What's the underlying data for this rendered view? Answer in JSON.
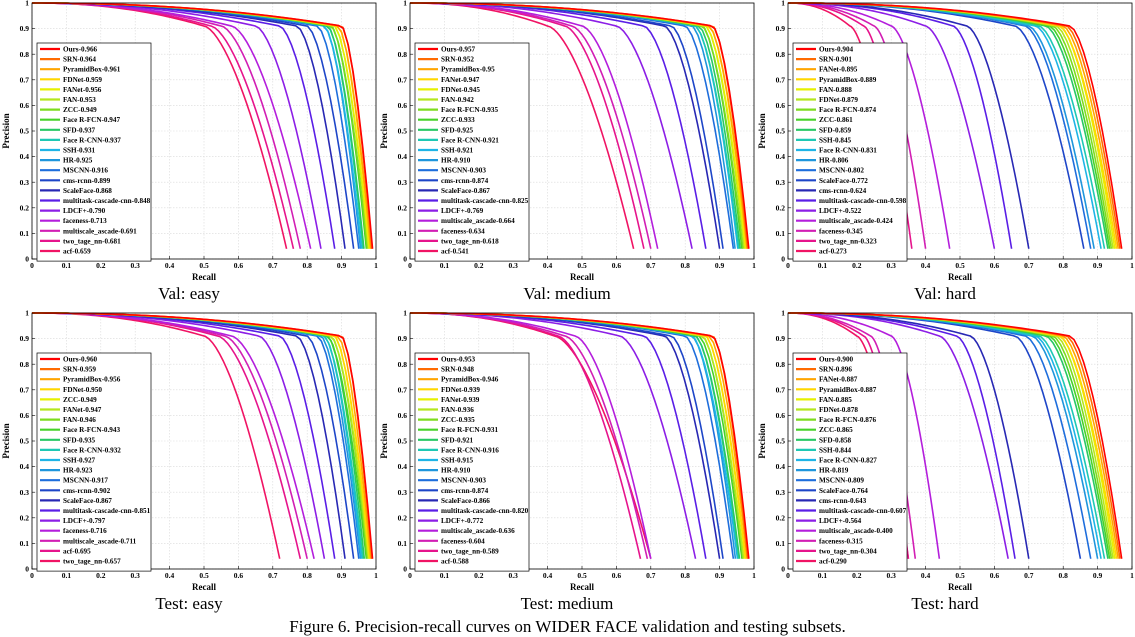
{
  "figure_caption": "Figure 6. Precision-recall curves on WIDER FACE validation and testing subsets.",
  "colors": [
    "#ff0000",
    "#ff6a00",
    "#ffa500",
    "#ffd700",
    "#e6f000",
    "#b4e61e",
    "#7ddc1e",
    "#46d228",
    "#28c864",
    "#1ec8b4",
    "#1eb4e6",
    "#1e96dc",
    "#1e6edc",
    "#1e46c8",
    "#2828b4",
    "#5a1ee6",
    "#8c1ee6",
    "#b41edc",
    "#d21eb4",
    "#e6148c",
    "#f01464"
  ],
  "chart_data": [
    {
      "type": "line",
      "caption": "Val: easy",
      "xlabel": "Recall",
      "ylabel": "Precision",
      "xlim": [
        0,
        1
      ],
      "ylim": [
        0,
        1
      ],
      "xticks": [
        "0",
        "0.1",
        "0.2",
        "0.3",
        "0.4",
        "0.5",
        "0.6",
        "0.7",
        "0.8",
        "0.9",
        "1"
      ],
      "yticks": [
        "0",
        "0.1",
        "0.2",
        "0.3",
        "0.4",
        "0.5",
        "0.6",
        "0.7",
        "0.8",
        "0.9",
        "1"
      ],
      "grid": true,
      "legend": "left",
      "series": [
        {
          "name": "Ours-0.966",
          "end": 0.99,
          "knee": 0.9
        },
        {
          "name": "SRN-0.964",
          "end": 0.988,
          "knee": 0.9
        },
        {
          "name": "PyramidBox-0.961",
          "end": 0.985,
          "knee": 0.89
        },
        {
          "name": "FDNet-0.959",
          "end": 0.983,
          "knee": 0.89
        },
        {
          "name": "FANet-0.956",
          "end": 0.98,
          "knee": 0.88
        },
        {
          "name": "FAN-0.953",
          "end": 0.978,
          "knee": 0.88
        },
        {
          "name": "ZCC-0.949",
          "end": 0.975,
          "knee": 0.87
        },
        {
          "name": "Face R-FCN-0.947",
          "end": 0.972,
          "knee": 0.87
        },
        {
          "name": "SFD-0.937",
          "end": 0.965,
          "knee": 0.86
        },
        {
          "name": "Face R-CNN-0.937",
          "end": 0.962,
          "knee": 0.86
        },
        {
          "name": "SSH-0.931",
          "end": 0.958,
          "knee": 0.85
        },
        {
          "name": "HR-0.925",
          "end": 0.955,
          "knee": 0.85
        },
        {
          "name": "MSCNN-0.916",
          "end": 0.95,
          "knee": 0.83
        },
        {
          "name": "cms-rcnn-0.899",
          "end": 0.935,
          "knee": 0.8
        },
        {
          "name": "ScaleFace-0.868",
          "end": 0.91,
          "knee": 0.77
        },
        {
          "name": "multitask-cascade-cnn-0.848",
          "end": 0.88,
          "knee": 0.72
        },
        {
          "name": "LDCF+-0.790",
          "end": 0.84,
          "knee": 0.65
        },
        {
          "name": "faceness-0.713",
          "end": 0.81,
          "knee": 0.58
        },
        {
          "name": "multiscale_ascade-0.691",
          "end": 0.78,
          "knee": 0.55
        },
        {
          "name": "two_tage_nn-0.681",
          "end": 0.76,
          "knee": 0.52
        },
        {
          "name": "acf-0.659",
          "end": 0.74,
          "knee": 0.5
        }
      ]
    },
    {
      "type": "line",
      "caption": "Val: medium",
      "xlabel": "Recall",
      "ylabel": "Precision",
      "xlim": [
        0,
        1
      ],
      "ylim": [
        0,
        1
      ],
      "xticks": [
        "0",
        "0.1",
        "0.2",
        "0.3",
        "0.4",
        "0.5",
        "0.6",
        "0.7",
        "0.8",
        "0.9",
        "1"
      ],
      "yticks": [
        "0",
        "0.1",
        "0.2",
        "0.3",
        "0.4",
        "0.5",
        "0.6",
        "0.7",
        "0.8",
        "0.9",
        "1"
      ],
      "grid": true,
      "legend": "left",
      "series": [
        {
          "name": "Ours-0.957",
          "end": 0.985,
          "knee": 0.88
        },
        {
          "name": "SRN-0.952",
          "end": 0.982,
          "knee": 0.88
        },
        {
          "name": "PyramidBox-0.95",
          "end": 0.98,
          "knee": 0.87
        },
        {
          "name": "FANet-0.947",
          "end": 0.978,
          "knee": 0.87
        },
        {
          "name": "FDNet-0.945",
          "end": 0.975,
          "knee": 0.86
        },
        {
          "name": "FAN-0.942",
          "end": 0.972,
          "knee": 0.86
        },
        {
          "name": "Face R-FCN-0.935",
          "end": 0.968,
          "knee": 0.85
        },
        {
          "name": "ZCC-0.933",
          "end": 0.965,
          "knee": 0.85
        },
        {
          "name": "SFD-0.925",
          "end": 0.96,
          "knee": 0.84
        },
        {
          "name": "Face R-CNN-0.921",
          "end": 0.956,
          "knee": 0.83
        },
        {
          "name": "SSH-0.921",
          "end": 0.953,
          "knee": 0.83
        },
        {
          "name": "HR-0.910",
          "end": 0.945,
          "knee": 0.82
        },
        {
          "name": "MSCNN-0.903",
          "end": 0.94,
          "knee": 0.8
        },
        {
          "name": "cms-rcnn-0.874",
          "end": 0.91,
          "knee": 0.76
        },
        {
          "name": "ScaleFace-0.867",
          "end": 0.9,
          "knee": 0.74
        },
        {
          "name": "multitask-cascade-cnn-0.825",
          "end": 0.86,
          "knee": 0.68
        },
        {
          "name": "LDCF+-0.769",
          "end": 0.82,
          "knee": 0.6
        },
        {
          "name": "multiscale_ascade-0.664",
          "end": 0.72,
          "knee": 0.5
        },
        {
          "name": "faceness-0.634",
          "end": 0.7,
          "knee": 0.47
        },
        {
          "name": "two_tage_nn-0.618",
          "end": 0.68,
          "knee": 0.45
        },
        {
          "name": "acf-0.541",
          "end": 0.65,
          "knee": 0.4
        }
      ]
    },
    {
      "type": "line",
      "caption": "Val: hard",
      "xlabel": "Recall",
      "ylabel": "Precision",
      "xlim": [
        0,
        1
      ],
      "ylim": [
        0,
        1
      ],
      "xticks": [
        "0",
        "0.1",
        "0.2",
        "0.3",
        "0.4",
        "0.5",
        "0.6",
        "0.7",
        "0.8",
        "0.9",
        "1"
      ],
      "yticks": [
        "0",
        "0.1",
        "0.2",
        "0.3",
        "0.4",
        "0.5",
        "0.6",
        "0.7",
        "0.8",
        "0.9",
        "1"
      ],
      "grid": true,
      "legend": "left",
      "series": [
        {
          "name": "Ours-0.904",
          "end": 0.97,
          "knee": 0.82
        },
        {
          "name": "SRN-0.901",
          "end": 0.965,
          "knee": 0.81
        },
        {
          "name": "FANet-0.895",
          "end": 0.96,
          "knee": 0.8
        },
        {
          "name": "PyramidBox-0.889",
          "end": 0.955,
          "knee": 0.79
        },
        {
          "name": "FAN-0.888",
          "end": 0.95,
          "knee": 0.79
        },
        {
          "name": "FDNet-0.879",
          "end": 0.945,
          "knee": 0.78
        },
        {
          "name": "Face R-FCN-0.874",
          "end": 0.94,
          "knee": 0.77
        },
        {
          "name": "ZCC-0.861",
          "end": 0.935,
          "knee": 0.76
        },
        {
          "name": "SFD-0.859",
          "end": 0.93,
          "knee": 0.75
        },
        {
          "name": "SSH-0.845",
          "end": 0.92,
          "knee": 0.73
        },
        {
          "name": "Face R-CNN-0.831",
          "end": 0.91,
          "knee": 0.72
        },
        {
          "name": "HR-0.806",
          "end": 0.89,
          "knee": 0.7
        },
        {
          "name": "MSCNN-0.802",
          "end": 0.88,
          "knee": 0.69
        },
        {
          "name": "ScaleFace-0.772",
          "end": 0.86,
          "knee": 0.66
        },
        {
          "name": "cms-rcnn-0.624",
          "end": 0.7,
          "knee": 0.52
        },
        {
          "name": "multitask-cascade-cnn-0.598",
          "end": 0.65,
          "knee": 0.48
        },
        {
          "name": "LDCF+-0.522",
          "end": 0.6,
          "knee": 0.4
        },
        {
          "name": "multiscale_ascade-0.424",
          "end": 0.47,
          "knee": 0.3
        },
        {
          "name": "faceness-0.345",
          "end": 0.4,
          "knee": 0.25
        },
        {
          "name": "two_tage_nn-0.323",
          "end": 0.36,
          "knee": 0.22
        },
        {
          "name": "acf-0.273",
          "end": 0.33,
          "knee": 0.18
        }
      ]
    },
    {
      "type": "line",
      "caption": "Test: easy",
      "xlabel": "Recall",
      "ylabel": "Precision",
      "xlim": [
        0,
        1
      ],
      "ylim": [
        0,
        1
      ],
      "xticks": [
        "0",
        "0.1",
        "0.2",
        "0.3",
        "0.4",
        "0.5",
        "0.6",
        "0.7",
        "0.8",
        "0.9",
        "1"
      ],
      "yticks": [
        "0",
        "0.1",
        "0.2",
        "0.3",
        "0.4",
        "0.5",
        "0.6",
        "0.7",
        "0.8",
        "0.9",
        "1"
      ],
      "grid": true,
      "legend": "left",
      "series": [
        {
          "name": "Ours-0.960",
          "end": 0.99,
          "knee": 0.9
        },
        {
          "name": "SRN-0.959",
          "end": 0.988,
          "knee": 0.9
        },
        {
          "name": "PyramidBox-0.956",
          "end": 0.985,
          "knee": 0.89
        },
        {
          "name": "FDNet-0.950",
          "end": 0.982,
          "knee": 0.88
        },
        {
          "name": "ZCC-0.949",
          "end": 0.98,
          "knee": 0.88
        },
        {
          "name": "FANet-0.947",
          "end": 0.978,
          "knee": 0.87
        },
        {
          "name": "FAN-0.946",
          "end": 0.975,
          "knee": 0.87
        },
        {
          "name": "Face R-FCN-0.943",
          "end": 0.972,
          "knee": 0.86
        },
        {
          "name": "SFD-0.935",
          "end": 0.966,
          "knee": 0.86
        },
        {
          "name": "Face R-CNN-0.932",
          "end": 0.962,
          "knee": 0.85
        },
        {
          "name": "SSH-0.927",
          "end": 0.958,
          "knee": 0.85
        },
        {
          "name": "HR-0.923",
          "end": 0.955,
          "knee": 0.84
        },
        {
          "name": "MSCNN-0.917",
          "end": 0.95,
          "knee": 0.83
        },
        {
          "name": "cms-rcnn-0.902",
          "end": 0.935,
          "knee": 0.8
        },
        {
          "name": "ScaleFace-0.867",
          "end": 0.91,
          "knee": 0.77
        },
        {
          "name": "multitask-cascade-cnn-0.851",
          "end": 0.88,
          "knee": 0.72
        },
        {
          "name": "LDCF+-0.797",
          "end": 0.85,
          "knee": 0.66
        },
        {
          "name": "faceness-0.716",
          "end": 0.82,
          "knee": 0.58
        },
        {
          "name": "multiscale_ascade-0.711",
          "end": 0.8,
          "knee": 0.56
        },
        {
          "name": "acf-0.695",
          "end": 0.78,
          "knee": 0.54
        },
        {
          "name": "two_tage_nn-0.657",
          "end": 0.72,
          "knee": 0.5
        }
      ]
    },
    {
      "type": "line",
      "caption": "Test: medium",
      "xlabel": "Recall",
      "ylabel": "Precision",
      "xlim": [
        0,
        1
      ],
      "ylim": [
        0,
        1
      ],
      "xticks": [
        "0",
        "0.1",
        "0.2",
        "0.3",
        "0.4",
        "0.5",
        "0.6",
        "0.7",
        "0.8",
        "0.9",
        "1"
      ],
      "yticks": [
        "0",
        "0.1",
        "0.2",
        "0.3",
        "0.4",
        "0.5",
        "0.6",
        "0.7",
        "0.8",
        "0.9",
        "1"
      ],
      "grid": true,
      "legend": "left",
      "series": [
        {
          "name": "Ours-0.953",
          "end": 0.985,
          "knee": 0.88
        },
        {
          "name": "SRN-0.948",
          "end": 0.982,
          "knee": 0.88
        },
        {
          "name": "PyramidBox-0.946",
          "end": 0.98,
          "knee": 0.87
        },
        {
          "name": "FDNet-0.939",
          "end": 0.976,
          "knee": 0.86
        },
        {
          "name": "FANet-0.939",
          "end": 0.974,
          "knee": 0.86
        },
        {
          "name": "FAN-0.936",
          "end": 0.97,
          "knee": 0.85
        },
        {
          "name": "ZCC-0.935",
          "end": 0.968,
          "knee": 0.85
        },
        {
          "name": "Face R-FCN-0.931",
          "end": 0.965,
          "knee": 0.84
        },
        {
          "name": "SFD-0.921",
          "end": 0.958,
          "knee": 0.83
        },
        {
          "name": "Face R-CNN-0.916",
          "end": 0.955,
          "knee": 0.83
        },
        {
          "name": "SSH-0.915",
          "end": 0.952,
          "knee": 0.82
        },
        {
          "name": "HR-0.910",
          "end": 0.946,
          "knee": 0.82
        },
        {
          "name": "MSCNN-0.903",
          "end": 0.94,
          "knee": 0.8
        },
        {
          "name": "cms-rcnn-0.874",
          "end": 0.91,
          "knee": 0.76
        },
        {
          "name": "ScaleFace-0.866",
          "end": 0.9,
          "knee": 0.74
        },
        {
          "name": "multitask-cascade-cnn-0.820",
          "end": 0.86,
          "knee": 0.68
        },
        {
          "name": "LDCF+-0.772",
          "end": 0.83,
          "knee": 0.61
        },
        {
          "name": "multiscale_ascade-0.636",
          "end": 0.7,
          "knee": 0.48
        },
        {
          "name": "faceness-0.604",
          "end": 0.69,
          "knee": 0.45
        },
        {
          "name": "two_tage_nn-0.589",
          "end": 0.67,
          "knee": 0.43
        },
        {
          "name": "acf-0.588",
          "end": 0.7,
          "knee": 0.42
        }
      ]
    },
    {
      "type": "line",
      "caption": "Test: hard",
      "xlabel": "Recall",
      "ylabel": "Precision",
      "xlim": [
        0,
        1
      ],
      "ylim": [
        0,
        1
      ],
      "xticks": [
        "0",
        "0.1",
        "0.2",
        "0.3",
        "0.4",
        "0.5",
        "0.6",
        "0.7",
        "0.8",
        "0.9",
        "1"
      ],
      "yticks": [
        "0",
        "0.1",
        "0.2",
        "0.3",
        "0.4",
        "0.5",
        "0.6",
        "0.7",
        "0.8",
        "0.9",
        "1"
      ],
      "grid": true,
      "legend": "left",
      "series": [
        {
          "name": "Ours-0.900",
          "end": 0.97,
          "knee": 0.82
        },
        {
          "name": "SRN-0.896",
          "end": 0.965,
          "knee": 0.81
        },
        {
          "name": "FANet-0.887",
          "end": 0.96,
          "knee": 0.8
        },
        {
          "name": "PyramidBox-0.887",
          "end": 0.955,
          "knee": 0.79
        },
        {
          "name": "FAN-0.885",
          "end": 0.95,
          "knee": 0.79
        },
        {
          "name": "FDNet-0.878",
          "end": 0.945,
          "knee": 0.78
        },
        {
          "name": "Face R-FCN-0.876",
          "end": 0.94,
          "knee": 0.77
        },
        {
          "name": "ZCC-0.865",
          "end": 0.935,
          "knee": 0.76
        },
        {
          "name": "SFD-0.858",
          "end": 0.93,
          "knee": 0.75
        },
        {
          "name": "SSH-0.844",
          "end": 0.92,
          "knee": 0.73
        },
        {
          "name": "Face R-CNN-0.827",
          "end": 0.91,
          "knee": 0.72
        },
        {
          "name": "HR-0.819",
          "end": 0.9,
          "knee": 0.71
        },
        {
          "name": "MSCNN-0.809",
          "end": 0.88,
          "knee": 0.69
        },
        {
          "name": "ScaleFace-0.764",
          "end": 0.85,
          "knee": 0.66
        },
        {
          "name": "cms-rcnn-0.643",
          "end": 0.7,
          "knee": 0.53
        },
        {
          "name": "multitask-cascade-cnn-0.607",
          "end": 0.66,
          "knee": 0.49
        },
        {
          "name": "LDCF+-0.564",
          "end": 0.64,
          "knee": 0.44
        },
        {
          "name": "multiscale_ascade-0.400",
          "end": 0.44,
          "knee": 0.3
        },
        {
          "name": "faceness-0.315",
          "end": 0.37,
          "knee": 0.24
        },
        {
          "name": "two_tage_nn-0.304",
          "end": 0.35,
          "knee": 0.22
        },
        {
          "name": "acf-0.290",
          "end": 0.35,
          "knee": 0.2
        }
      ]
    }
  ]
}
